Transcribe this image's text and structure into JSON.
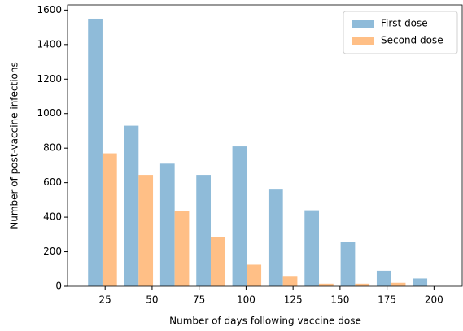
{
  "chart_data": {
    "type": "histogram",
    "xlabel": "Number of days following vaccine dose",
    "ylabel": "Number of post-vaccine infections",
    "bins": [
      14,
      33.2,
      52.4,
      71.6,
      90.8,
      110,
      129.2,
      148.4,
      167.6,
      186.8,
      206
    ],
    "series": [
      {
        "name": "First dose",
        "color": "#8fbbd9",
        "values": [
          1550,
          930,
          710,
          645,
          810,
          560,
          440,
          255,
          90,
          45
        ]
      },
      {
        "name": "Second dose",
        "color": "#ffbf86",
        "values": [
          770,
          645,
          435,
          285,
          125,
          60,
          15,
          15,
          20,
          0
        ]
      }
    ],
    "xlim": [
      5,
      215
    ],
    "ylim": [
      0,
      1630
    ],
    "xticks": [
      25,
      50,
      75,
      100,
      125,
      150,
      175,
      200
    ],
    "yticks": [
      0,
      200,
      400,
      600,
      800,
      1000,
      1200,
      1400,
      1600
    ],
    "legend": "upper right",
    "grid": false
  }
}
